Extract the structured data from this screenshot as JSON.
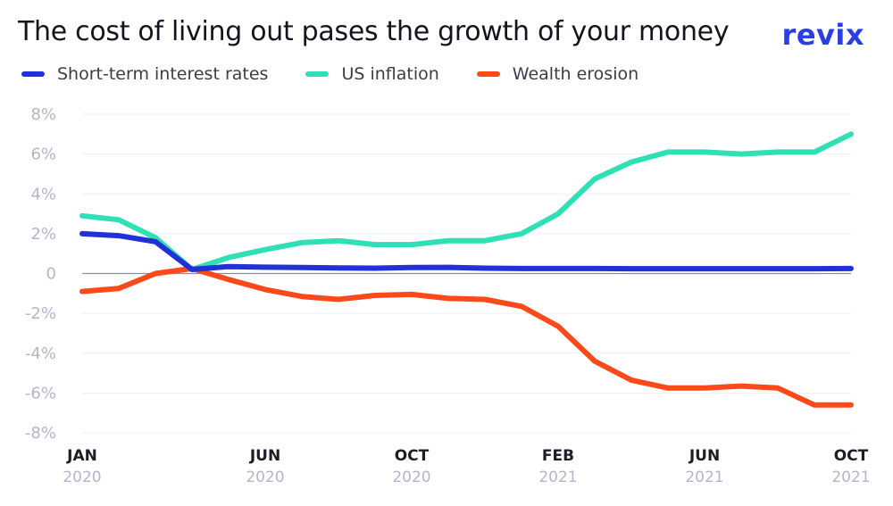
{
  "header": {
    "title": "The cost of living out pases the growth of your money",
    "logo": "revix"
  },
  "chart_data": {
    "type": "line",
    "title": "The cost of living out pases the growth of your money",
    "xlabel": "",
    "ylabel": "",
    "ylim": [
      -8,
      8
    ],
    "y_ticks": [
      {
        "value": 8,
        "label": "8%"
      },
      {
        "value": 6,
        "label": "6%"
      },
      {
        "value": 4,
        "label": "4%"
      },
      {
        "value": 2,
        "label": "2%"
      },
      {
        "value": 0,
        "label": "0"
      },
      {
        "value": -2,
        "label": "-2%"
      },
      {
        "value": -4,
        "label": "-4%"
      },
      {
        "value": -6,
        "label": "-6%"
      },
      {
        "value": -8,
        "label": "-8%"
      }
    ],
    "x": [
      "2020-01",
      "2020-02",
      "2020-03",
      "2020-04",
      "2020-05",
      "2020-06",
      "2020-07",
      "2020-08",
      "2020-09",
      "2020-10",
      "2020-11",
      "2020-12",
      "2021-01",
      "2021-02",
      "2021-03",
      "2021-04",
      "2021-05",
      "2021-06",
      "2021-07",
      "2021-08",
      "2021-09",
      "2021-10"
    ],
    "x_ticks": [
      {
        "x": "2020-01",
        "month": "JAN",
        "year": "2020"
      },
      {
        "x": "2020-06",
        "month": "JUN",
        "year": "2020"
      },
      {
        "x": "2020-10",
        "month": "OCT",
        "year": "2020"
      },
      {
        "x": "2021-02",
        "month": "FEB",
        "year": "2021"
      },
      {
        "x": "2021-06",
        "month": "JUN",
        "year": "2021"
      },
      {
        "x": "2021-10",
        "month": "OCT",
        "year": "2021"
      }
    ],
    "grid": true,
    "legend": "top-left",
    "series": [
      {
        "name": "Short-term interest rates",
        "color": "#2230d8",
        "values": [
          2.0,
          1.9,
          1.6,
          0.2,
          0.35,
          0.32,
          0.3,
          0.28,
          0.27,
          0.3,
          0.31,
          0.27,
          0.25,
          0.25,
          0.25,
          0.24,
          0.24,
          0.24,
          0.24,
          0.24,
          0.24,
          0.25
        ]
      },
      {
        "name": "US inflation",
        "color": "#2fe0b4",
        "values": [
          2.9,
          2.7,
          1.8,
          0.2,
          0.8,
          1.2,
          1.55,
          1.65,
          1.45,
          1.45,
          1.65,
          1.65,
          2.0,
          3.0,
          4.75,
          5.6,
          6.1,
          6.1,
          6.0,
          6.1,
          6.1,
          7.0
        ]
      },
      {
        "name": "Wealth erosion",
        "color": "#fb4a1a",
        "values": [
          -0.9,
          -0.75,
          0.0,
          0.25,
          -0.3,
          -0.8,
          -1.15,
          -1.3,
          -1.1,
          -1.05,
          -1.25,
          -1.3,
          -1.65,
          -2.65,
          -4.4,
          -5.35,
          -5.75,
          -5.75,
          -5.65,
          -5.75,
          -6.6,
          -6.6
        ]
      }
    ]
  }
}
